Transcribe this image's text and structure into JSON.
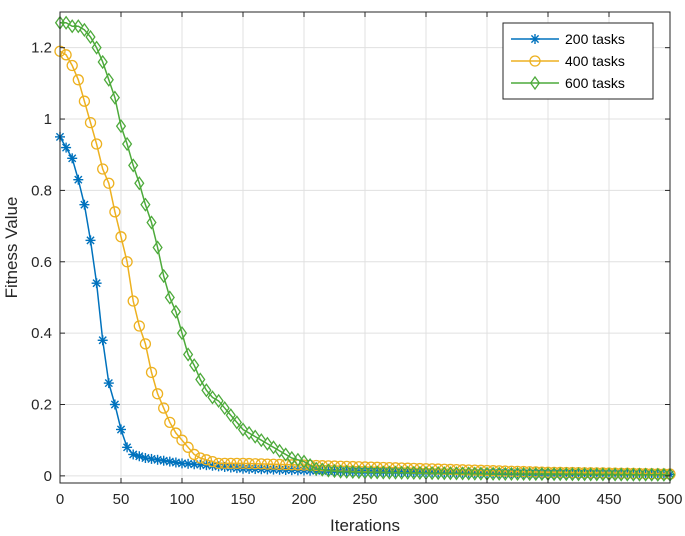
{
  "chart_data": {
    "type": "line",
    "title": "",
    "xlabel": "Iterations",
    "ylabel": "Fitness Value",
    "xlim": [
      0,
      500
    ],
    "ylim": [
      -0.02,
      1.3
    ],
    "xticks": [
      0,
      50,
      100,
      150,
      200,
      250,
      300,
      350,
      400,
      450,
      500
    ],
    "yticks": [
      0,
      0.2,
      0.4,
      0.6,
      0.8,
      1,
      1.2
    ],
    "xtick_labels": [
      "0",
      "50",
      "100",
      "150",
      "200",
      "250",
      "300",
      "350",
      "400",
      "450",
      "500"
    ],
    "ytick_labels": [
      "0",
      "0.2",
      "0.4",
      "0.6",
      "0.8",
      "1",
      "1.2"
    ],
    "grid": true,
    "legend_position": "top-right",
    "marker_interval": 5,
    "series": [
      {
        "name": "200 tasks",
        "color": "#0072BD",
        "marker": "asterisk",
        "x": [
          0,
          5,
          10,
          15,
          20,
          25,
          30,
          35,
          40,
          45,
          50,
          55,
          60,
          70,
          80,
          90,
          100,
          120,
          150,
          200,
          250,
          300,
          350,
          400,
          450,
          500
        ],
        "y": [
          0.95,
          0.92,
          0.89,
          0.83,
          0.76,
          0.66,
          0.54,
          0.38,
          0.26,
          0.2,
          0.13,
          0.08,
          0.06,
          0.05,
          0.045,
          0.04,
          0.035,
          0.03,
          0.02,
          0.015,
          0.012,
          0.01,
          0.008,
          0.006,
          0.005,
          0.004
        ]
      },
      {
        "name": "400 tasks",
        "color": "#EDB120",
        "marker": "circle",
        "x": [
          0,
          5,
          10,
          15,
          20,
          25,
          30,
          35,
          40,
          45,
          50,
          55,
          60,
          65,
          70,
          75,
          80,
          85,
          90,
          95,
          100,
          105,
          110,
          115,
          120,
          125,
          130,
          150,
          200,
          250,
          300,
          350,
          400,
          450,
          500
        ],
        "y": [
          1.19,
          1.18,
          1.15,
          1.11,
          1.05,
          0.99,
          0.93,
          0.86,
          0.82,
          0.74,
          0.67,
          0.6,
          0.49,
          0.42,
          0.37,
          0.29,
          0.23,
          0.19,
          0.15,
          0.12,
          0.1,
          0.08,
          0.06,
          0.05,
          0.045,
          0.04,
          0.035,
          0.035,
          0.03,
          0.025,
          0.02,
          0.015,
          0.01,
          0.008,
          0.005
        ]
      },
      {
        "name": "600 tasks",
        "color": "#4DAA3B",
        "marker": "diamond",
        "x": [
          0,
          5,
          10,
          15,
          20,
          25,
          30,
          35,
          40,
          45,
          50,
          55,
          60,
          65,
          70,
          75,
          80,
          85,
          90,
          95,
          100,
          105,
          110,
          115,
          120,
          125,
          130,
          135,
          140,
          145,
          150,
          155,
          160,
          165,
          170,
          175,
          180,
          185,
          190,
          195,
          200,
          205,
          210,
          220,
          230,
          250,
          300,
          350,
          400,
          450,
          500
        ],
        "y": [
          1.27,
          1.27,
          1.26,
          1.26,
          1.25,
          1.23,
          1.2,
          1.16,
          1.11,
          1.06,
          0.98,
          0.93,
          0.87,
          0.82,
          0.76,
          0.71,
          0.64,
          0.56,
          0.5,
          0.46,
          0.4,
          0.34,
          0.31,
          0.27,
          0.24,
          0.22,
          0.21,
          0.19,
          0.17,
          0.15,
          0.13,
          0.12,
          0.11,
          0.1,
          0.09,
          0.08,
          0.07,
          0.06,
          0.05,
          0.045,
          0.04,
          0.03,
          0.02,
          0.015,
          0.012,
          0.01,
          0.008,
          0.006,
          0.005,
          0.004,
          0.003
        ]
      }
    ]
  }
}
